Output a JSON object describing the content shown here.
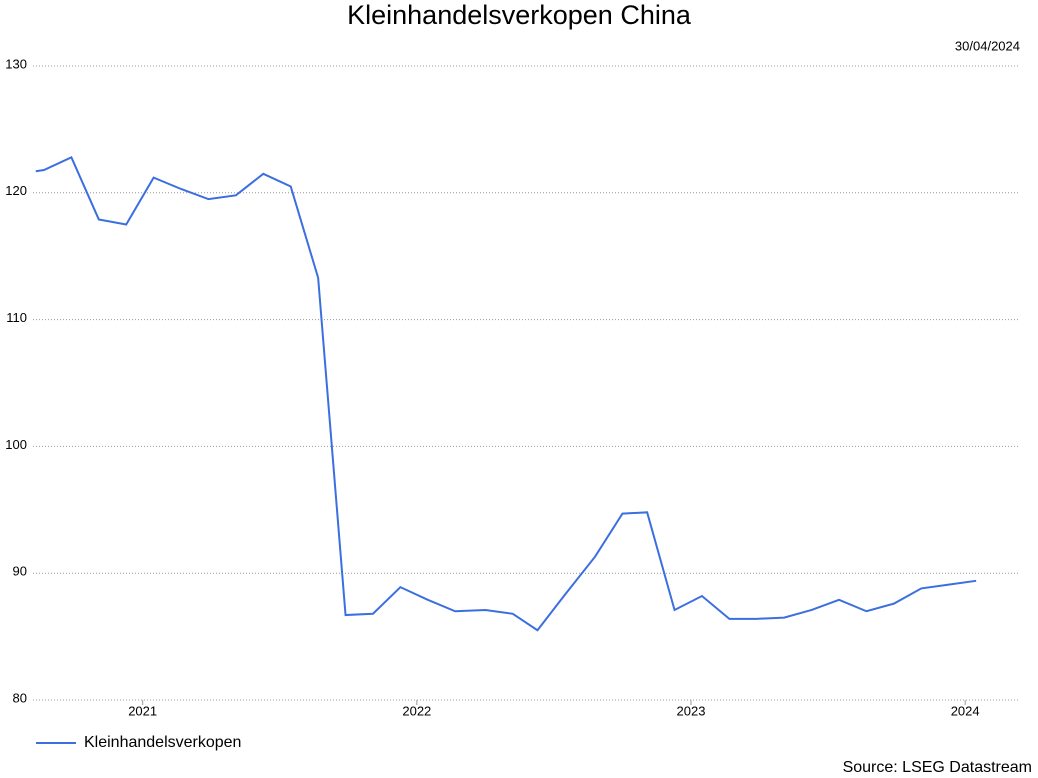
{
  "chart_data": {
    "type": "line",
    "title": "Kleinhandelsverkopen China",
    "date": "30/04/2024",
    "source": "Source: LSEG Datastream",
    "x": [
      2020.61,
      2020.64,
      2020.74,
      2020.84,
      2020.94,
      2021.04,
      2021.14,
      2021.24,
      2021.34,
      2021.44,
      2021.54,
      2021.64,
      2021.74,
      2021.84,
      2021.94,
      2022.04,
      2022.14,
      2022.25,
      2022.35,
      2022.44,
      2022.54,
      2022.65,
      2022.75,
      2022.84,
      2022.94,
      2023.04,
      2023.14,
      2023.24,
      2023.34,
      2023.44,
      2023.54,
      2023.64,
      2023.74,
      2023.84,
      2023.94,
      2024.04
    ],
    "series": [
      {
        "name": "Kleinhandelsverkopen",
        "color": "#3b6fe0",
        "values": [
          121.7,
          121.8,
          122.8,
          117.9,
          117.5,
          121.2,
          120.3,
          119.5,
          119.8,
          121.5,
          120.5,
          113.3,
          86.7,
          86.8,
          88.9,
          87.9,
          87.0,
          87.1,
          86.8,
          85.5,
          88.3,
          91.3,
          94.7,
          94.8,
          87.1,
          88.2,
          86.4,
          86.4,
          86.5,
          87.1,
          87.9,
          87.0,
          87.6,
          88.8,
          89.1,
          89.4
        ]
      }
    ],
    "xlim": [
      2020.6,
      2024.2
    ],
    "xticks": [
      2021,
      2022,
      2023,
      2024
    ],
    "ylim": [
      80,
      130
    ],
    "yticks": [
      80,
      90,
      100,
      110,
      120,
      130
    ],
    "grid": true
  }
}
